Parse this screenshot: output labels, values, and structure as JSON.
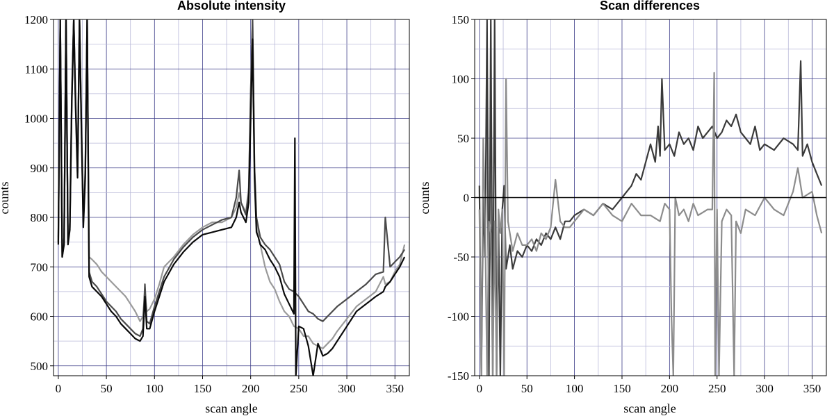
{
  "chart_data": [
    {
      "type": "line",
      "title": "Absolute intensity",
      "xlabel": "scan angle",
      "ylabel": "counts",
      "xlim": [
        -5,
        365
      ],
      "ylim": [
        480,
        1200
      ],
      "xticks": [
        0,
        50,
        100,
        150,
        200,
        250,
        300,
        350
      ],
      "yticks": [
        500,
        600,
        700,
        800,
        900,
        1000,
        1100,
        1200
      ],
      "grid": true,
      "series_colors": [
        "#9a9a9a",
        "#4a4a4a",
        "#0a0a0a"
      ],
      "series": [
        {
          "x": [
            0,
            2,
            4,
            6,
            8,
            10,
            12,
            14,
            16,
            18,
            20,
            22,
            24,
            26,
            28,
            30,
            32,
            35,
            40,
            45,
            50,
            55,
            60,
            65,
            70,
            75,
            80,
            85,
            88,
            90,
            92,
            95,
            100,
            105,
            110,
            120,
            130,
            140,
            150,
            160,
            170,
            180,
            185,
            188,
            190,
            195,
            198,
            200,
            202,
            204,
            206,
            208,
            210,
            215,
            220,
            225,
            230,
            235,
            240,
            245,
            250,
            255,
            260,
            265,
            270,
            275,
            280,
            285,
            290,
            300,
            310,
            320,
            330,
            338,
            340,
            345,
            350,
            355,
            360
          ],
          "y": [
            760,
            1200,
            730,
            760,
            1200,
            760,
            790,
            1050,
            1200,
            1040,
            900,
            1200,
            1000,
            800,
            900,
            1200,
            720,
            715,
            705,
            690,
            680,
            670,
            660,
            650,
            640,
            625,
            610,
            590,
            600,
            650,
            610,
            615,
            635,
            665,
            700,
            720,
            745,
            765,
            780,
            790,
            790,
            800,
            820,
            850,
            830,
            810,
            860,
            1050,
            1200,
            900,
            790,
            760,
            745,
            700,
            670,
            655,
            630,
            610,
            600,
            580,
            575,
            560,
            560,
            545,
            540,
            535,
            545,
            555,
            570,
            595,
            620,
            635,
            650,
            680,
            665,
            670,
            690,
            705,
            745
          ]
        },
        {
          "x": [
            0,
            2,
            4,
            6,
            8,
            10,
            12,
            14,
            16,
            18,
            20,
            22,
            24,
            26,
            28,
            30,
            32,
            35,
            40,
            45,
            50,
            55,
            60,
            65,
            70,
            75,
            80,
            85,
            88,
            90,
            92,
            95,
            100,
            105,
            110,
            120,
            130,
            140,
            150,
            160,
            170,
            180,
            185,
            188,
            190,
            195,
            198,
            200,
            202,
            204,
            206,
            208,
            210,
            215,
            220,
            225,
            230,
            235,
            240,
            245,
            250,
            255,
            260,
            265,
            270,
            275,
            280,
            285,
            290,
            300,
            310,
            320,
            330,
            338,
            340,
            345,
            350,
            355,
            360
          ],
          "y": [
            750,
            1200,
            720,
            750,
            1200,
            750,
            780,
            1040,
            1200,
            1030,
            890,
            1200,
            990,
            790,
            890,
            1200,
            690,
            670,
            660,
            645,
            630,
            620,
            610,
            595,
            585,
            575,
            565,
            560,
            575,
            665,
            590,
            585,
            620,
            650,
            680,
            715,
            740,
            760,
            775,
            785,
            795,
            800,
            840,
            895,
            830,
            805,
            850,
            1050,
            1200,
            900,
            800,
            780,
            760,
            745,
            735,
            720,
            705,
            670,
            655,
            650,
            640,
            625,
            610,
            605,
            595,
            590,
            600,
            610,
            620,
            635,
            650,
            665,
            685,
            690,
            800,
            700,
            710,
            720,
            735
          ]
        },
        {
          "x": [
            0,
            2,
            4,
            6,
            8,
            10,
            12,
            14,
            16,
            18,
            20,
            22,
            24,
            26,
            28,
            30,
            32,
            35,
            40,
            45,
            50,
            55,
            60,
            65,
            70,
            75,
            80,
            85,
            88,
            90,
            92,
            95,
            100,
            105,
            110,
            120,
            130,
            140,
            150,
            160,
            170,
            180,
            185,
            188,
            190,
            195,
            198,
            200,
            202,
            204,
            206,
            208,
            210,
            215,
            220,
            225,
            230,
            235,
            240,
            245,
            246,
            247,
            250,
            255,
            260,
            265,
            270,
            275,
            280,
            285,
            290,
            300,
            310,
            320,
            330,
            338,
            340,
            345,
            350,
            355,
            360
          ],
          "y": [
            745,
            1200,
            720,
            745,
            1200,
            745,
            775,
            1030,
            1200,
            1020,
            880,
            1200,
            980,
            780,
            880,
            1200,
            680,
            660,
            650,
            640,
            625,
            610,
            600,
            585,
            575,
            565,
            555,
            550,
            560,
            640,
            575,
            575,
            610,
            640,
            670,
            705,
            730,
            750,
            765,
            770,
            775,
            780,
            800,
            830,
            810,
            790,
            830,
            1000,
            1160,
            880,
            770,
            760,
            745,
            735,
            715,
            700,
            680,
            645,
            625,
            605,
            960,
            480,
            580,
            575,
            540,
            480,
            545,
            520,
            525,
            535,
            550,
            580,
            610,
            625,
            640,
            650,
            660,
            670,
            685,
            700,
            720
          ]
        }
      ]
    },
    {
      "type": "line",
      "title": "Scan differences",
      "xlabel": "scan angle",
      "ylabel": "counts",
      "xlim": [
        -5,
        365
      ],
      "ylim": [
        -150,
        150
      ],
      "xticks": [
        0,
        50,
        100,
        150,
        200,
        250,
        300,
        350
      ],
      "yticks": [
        -150,
        -100,
        -50,
        0,
        50,
        100,
        150
      ],
      "grid": true,
      "series_colors": [
        "#3a3a3a",
        "#8c8c8c"
      ],
      "series": [
        {
          "x": [
            0,
            2,
            4,
            6,
            8,
            10,
            12,
            14,
            16,
            18,
            20,
            22,
            24,
            26,
            28,
            30,
            32,
            35,
            40,
            45,
            50,
            55,
            60,
            65,
            70,
            75,
            80,
            85,
            90,
            95,
            100,
            110,
            120,
            130,
            140,
            150,
            155,
            160,
            165,
            170,
            175,
            180,
            185,
            188,
            190,
            192,
            195,
            200,
            205,
            210,
            215,
            220,
            225,
            230,
            235,
            240,
            245,
            250,
            255,
            260,
            265,
            270,
            275,
            280,
            285,
            290,
            295,
            300,
            310,
            320,
            330,
            335,
            338,
            340,
            345,
            350,
            355,
            360
          ],
          "y": [
            10,
            -150,
            0,
            -50,
            150,
            -150,
            150,
            -150,
            150,
            -150,
            -20,
            -150,
            -10,
            10,
            -60,
            -50,
            -40,
            -60,
            -45,
            -50,
            -40,
            -45,
            -35,
            -40,
            -30,
            -35,
            -25,
            -35,
            -20,
            -20,
            -15,
            -10,
            -15,
            -5,
            -10,
            0,
            5,
            10,
            20,
            15,
            30,
            45,
            30,
            60,
            35,
            100,
            40,
            45,
            35,
            55,
            45,
            50,
            40,
            60,
            50,
            55,
            60,
            50,
            55,
            65,
            60,
            70,
            55,
            50,
            45,
            60,
            40,
            45,
            40,
            50,
            45,
            40,
            115,
            35,
            45,
            30,
            20,
            10
          ]
        },
        {
          "x": [
            0,
            2,
            4,
            6,
            8,
            10,
            12,
            14,
            16,
            18,
            20,
            22,
            24,
            26,
            28,
            30,
            32,
            35,
            40,
            45,
            50,
            55,
            60,
            65,
            70,
            75,
            80,
            85,
            90,
            95,
            100,
            110,
            120,
            130,
            140,
            150,
            160,
            170,
            180,
            190,
            195,
            200,
            202,
            204,
            206,
            210,
            215,
            220,
            225,
            230,
            240,
            245,
            247,
            248,
            250,
            252,
            255,
            260,
            265,
            268,
            270,
            275,
            280,
            290,
            300,
            310,
            320,
            330,
            335,
            340,
            350,
            355,
            360
          ],
          "y": [
            -10,
            -150,
            50,
            -20,
            -150,
            -20,
            -30,
            -150,
            -20,
            -150,
            -10,
            -30,
            -10,
            -150,
            100,
            -20,
            -30,
            -45,
            -30,
            -40,
            -40,
            -35,
            -45,
            -30,
            -35,
            -25,
            15,
            -20,
            -25,
            -25,
            -20,
            -10,
            -15,
            -5,
            -15,
            -20,
            -5,
            -15,
            -15,
            -20,
            -5,
            -10,
            -100,
            -150,
            0,
            -15,
            -10,
            -20,
            -5,
            -15,
            -10,
            -10,
            105,
            -150,
            -10,
            -150,
            -20,
            -10,
            -15,
            -150,
            -20,
            -30,
            -10,
            -15,
            0,
            -10,
            -15,
            5,
            25,
            0,
            5,
            -15,
            -30
          ]
        }
      ]
    }
  ]
}
